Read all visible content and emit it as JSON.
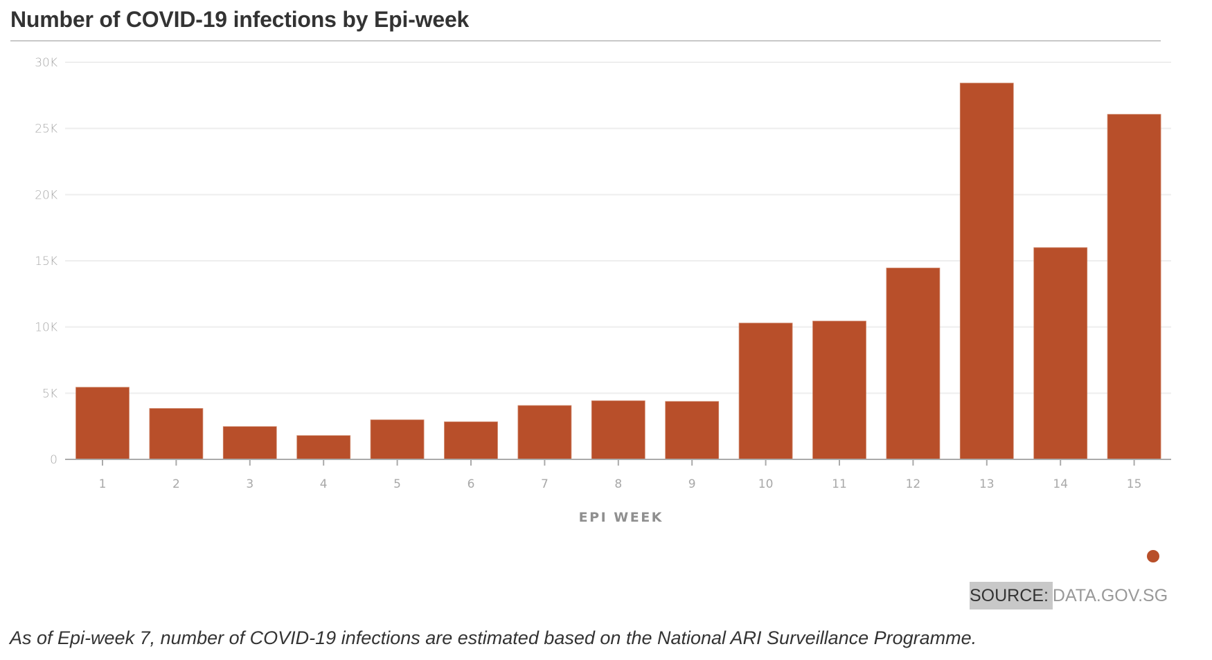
{
  "title": "Number of COVID-19 infections by Epi-week",
  "source": {
    "label": "SOURCE:",
    "value": "DATA.GOV.SG"
  },
  "footnote": "As of Epi-week 7, number of COVID-19 infections are estimated based on the National ARI Surveillance Programme.",
  "colors": {
    "bar": "#b84f2a",
    "grid": "#eeeeee",
    "axis": "#aaaaaa"
  },
  "chart_data": {
    "type": "bar",
    "title": "Number of COVID-19 infections by Epi-week",
    "xlabel": "EPI WEEK",
    "ylabel": "",
    "categories": [
      "1",
      "2",
      "3",
      "4",
      "5",
      "6",
      "7",
      "8",
      "9",
      "10",
      "11",
      "12",
      "13",
      "14",
      "15"
    ],
    "values": [
      5450,
      3850,
      2480,
      1800,
      2990,
      2840,
      4070,
      4430,
      4380,
      10300,
      10450,
      14460,
      28430,
      16000,
      26070
    ],
    "ylim": [
      0,
      30000
    ],
    "yticks": [
      0,
      5000,
      10000,
      15000,
      20000,
      25000,
      30000
    ],
    "ytick_labels": [
      "0",
      "5K",
      "10K",
      "15K",
      "20K",
      "25K",
      "30K"
    ],
    "grid": true,
    "legend": {
      "entries": [
        ""
      ],
      "placement": "bottom-right"
    }
  }
}
